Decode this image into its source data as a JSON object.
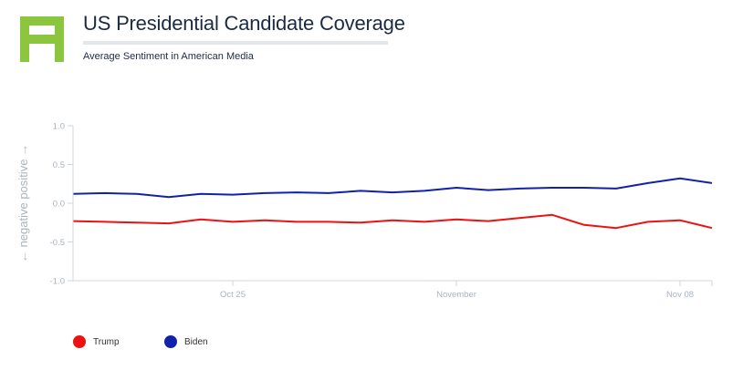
{
  "header": {
    "title": "US Presidential Candidate Coverage",
    "subtitle": "Average Sentiment in American Media"
  },
  "colors": {
    "brand": "#8cc63f",
    "trump": "#ee1111",
    "biden": "#1122aa"
  },
  "chart_data": {
    "type": "line",
    "title": "US Presidential Candidate Coverage",
    "subtitle": "Average Sentiment in American Media",
    "ylabel": "← negative positive →",
    "xlabel": "",
    "ylim": [
      -1.0,
      1.0
    ],
    "yticks": [
      "1.0",
      "0.5",
      "0.0",
      "-0.5",
      "-1.0"
    ],
    "ytick_values": [
      1.0,
      0.5,
      0.0,
      -0.5,
      -1.0
    ],
    "x_range": [
      "2020-10-20",
      "2020-11-09"
    ],
    "xticks": [
      {
        "label": "Oct 25",
        "date": "2020-10-25"
      },
      {
        "label": "November",
        "date": "2020-11-01"
      },
      {
        "label": "Nov 08",
        "date": "2020-11-08"
      }
    ],
    "x": [
      "2020-10-20",
      "2020-10-21",
      "2020-10-22",
      "2020-10-23",
      "2020-10-24",
      "2020-10-25",
      "2020-10-26",
      "2020-10-27",
      "2020-10-28",
      "2020-10-29",
      "2020-10-30",
      "2020-10-31",
      "2020-11-01",
      "2020-11-02",
      "2020-11-03",
      "2020-11-04",
      "2020-11-05",
      "2020-11-06",
      "2020-11-07",
      "2020-11-08",
      "2020-11-09"
    ],
    "series": [
      {
        "name": "Biden",
        "color": "#1122aa",
        "values": [
          0.12,
          0.13,
          0.12,
          0.08,
          0.12,
          0.11,
          0.13,
          0.14,
          0.13,
          0.16,
          0.14,
          0.16,
          0.2,
          0.17,
          0.19,
          0.2,
          0.2,
          0.19,
          0.26,
          0.32,
          0.26
        ]
      },
      {
        "name": "Trump",
        "color": "#ee1111",
        "values": [
          -0.23,
          -0.24,
          -0.25,
          -0.26,
          -0.21,
          -0.24,
          -0.22,
          -0.24,
          -0.24,
          -0.25,
          -0.22,
          -0.24,
          -0.21,
          -0.23,
          -0.19,
          -0.15,
          -0.28,
          -0.32,
          -0.24,
          -0.22,
          -0.32
        ]
      }
    ],
    "grid": false,
    "legend_position": "bottom-left",
    "legend": [
      "Trump",
      "Biden"
    ]
  }
}
